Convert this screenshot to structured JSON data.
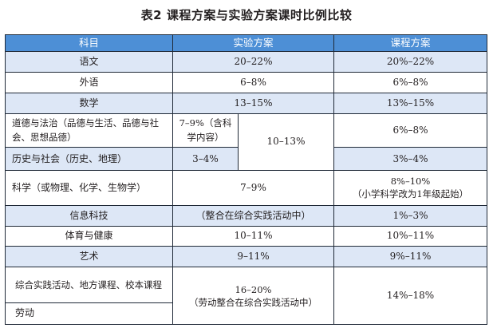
{
  "title": "表2  课程方案与实验方案课时比例比较",
  "table": {
    "headers": [
      "科目",
      "实验方案",
      "课程方案"
    ],
    "rows": {
      "chinese": {
        "subject": "语文",
        "experimental": "20–22%",
        "curriculum": "20%–22%"
      },
      "foreign": {
        "subject": "外语",
        "experimental": "6–8%",
        "curriculum": "6%–8%"
      },
      "math": {
        "subject": "数学",
        "experimental": "13–15%",
        "curriculum": "13%–15%"
      },
      "ethics": {
        "subject": "道德与法治（品德与生活、品德与社会、思想品德）",
        "experimental_part": "7–9%（含科学内容）",
        "experimental_combined": "10–13%",
        "curriculum": "6%–8%"
      },
      "history": {
        "subject": "历史与社会（历史、地理）",
        "experimental_part": "3–4%",
        "curriculum": "3%–4%"
      },
      "science": {
        "subject": "科学（或物理、化学、生物学）",
        "experimental": "7–9%",
        "curriculum": "8%–10%",
        "curriculum_note": "（小学科学改为1年级起始）"
      },
      "it": {
        "subject": "信息科技",
        "experimental": "（整合在综合实践活动中）",
        "curriculum": "1%–3%"
      },
      "pe": {
        "subject": "体育与健康",
        "experimental": "10–11%",
        "curriculum": "10%–11%"
      },
      "art": {
        "subject": "艺术",
        "experimental": "9–11%",
        "curriculum": "9%–11%"
      },
      "practice": {
        "subject": "综合实践活动、地方课程、校本课程",
        "experimental": "16–20%",
        "experimental_note": "（劳动整合在综合实践活动中）",
        "curriculum": "14%–18%"
      },
      "labor": {
        "subject": "劳动"
      }
    }
  }
}
